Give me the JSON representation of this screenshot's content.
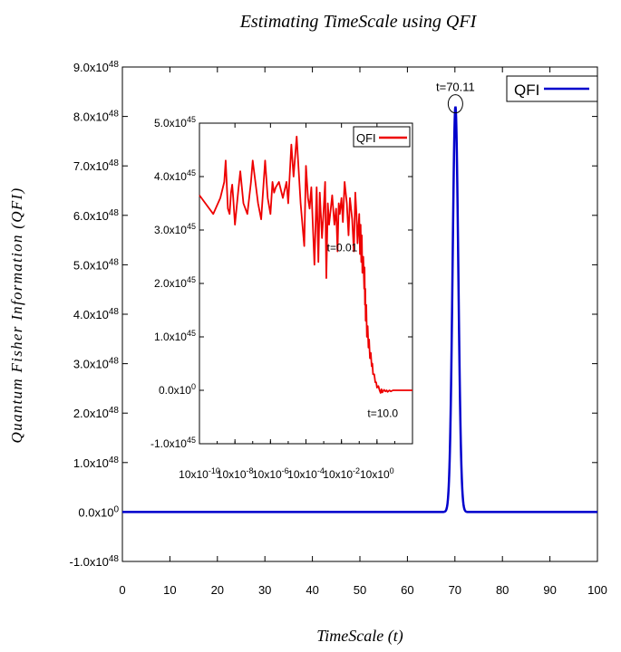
{
  "chart_data": {
    "type": "line",
    "title": "Estimating TimeScale using QFI",
    "xlabel": "TimeScale (t)",
    "ylabel": "Quantum Fisher Information (QFI)",
    "xlim": [
      0,
      100
    ],
    "ylim": [
      -1e+48,
      9e+48
    ],
    "x_ticks": [
      "0",
      "10",
      "20",
      "30",
      "40",
      "50",
      "60",
      "70",
      "80",
      "90",
      "100"
    ],
    "y_ticks": [
      {
        "mant": "-1.0",
        "exp": "48"
      },
      {
        "mant": "0.0",
        "exp": "0"
      },
      {
        "mant": "1.0",
        "exp": "48"
      },
      {
        "mant": "2.0",
        "exp": "48"
      },
      {
        "mant": "3.0",
        "exp": "48"
      },
      {
        "mant": "4.0",
        "exp": "48"
      },
      {
        "mant": "5.0",
        "exp": "48"
      },
      {
        "mant": "6.0",
        "exp": "48"
      },
      {
        "mant": "7.0",
        "exp": "48"
      },
      {
        "mant": "8.0",
        "exp": "48"
      },
      {
        "mant": "9.0",
        "exp": "48"
      }
    ],
    "grid": false,
    "legend_position": "top-right",
    "series": [
      {
        "name": "QFI",
        "color": "#0000cc",
        "peak": {
          "x": 70.11,
          "y": 8.2e+48,
          "width": 0.85
        },
        "baseline": 0.0
      }
    ],
    "annotations": [
      {
        "text": "t=70.11",
        "x": 70.11,
        "y": 8.2e+48,
        "marker": "circle"
      }
    ],
    "inset": {
      "type": "line",
      "xscale": "log",
      "xlim": [
        1e-10,
        100
      ],
      "ylim": [
        -1e+45,
        5e+45
      ],
      "x_ticks": [
        {
          "mant": "10",
          "exp": "-10",
          "value": 1e-10
        },
        {
          "mant": "10",
          "exp": "-8",
          "value": 1e-08
        },
        {
          "mant": "10",
          "exp": "-6",
          "value": 1e-06
        },
        {
          "mant": "10",
          "exp": "-4",
          "value": 0.0001
        },
        {
          "mant": "10",
          "exp": "-2",
          "value": 0.01
        },
        {
          "mant": "10",
          "exp": "0",
          "value": 1
        }
      ],
      "y_ticks": [
        {
          "mant": "-1.0",
          "exp": "45",
          "value": -1e+45
        },
        {
          "mant": "0.0",
          "exp": "0",
          "value": 0
        },
        {
          "mant": "1.0",
          "exp": "45",
          "value": 1e+45
        },
        {
          "mant": "2.0",
          "exp": "45",
          "value": 2e+45
        },
        {
          "mant": "3.0",
          "exp": "45",
          "value": 3e+45
        },
        {
          "mant": "4.0",
          "exp": "45",
          "value": 4e+45
        },
        {
          "mant": "5.0",
          "exp": "45",
          "value": 5e+45
        }
      ],
      "legend_position": "top-right",
      "series": [
        {
          "name": "QFI",
          "color": "#ee0000",
          "x": [
            1e-10,
            6e-10,
            1.5e-09,
            2.5e-09,
            3e-09,
            4e-09,
            5e-09,
            6e-09,
            7e-09,
            8e-09,
            1e-08,
            1.5e-08,
            2e-08,
            3e-08,
            5e-08,
            8e-08,
            1e-07,
            2e-07,
            3e-07,
            5e-07,
            7e-07,
            1e-06,
            1.3e-06,
            1.6e-06,
            2e-06,
            3e-06,
            5e-06,
            8e-06,
            1e-05,
            1.5e-05,
            2e-05,
            3e-05,
            5e-05,
            8e-05,
            0.0001,
            0.00013,
            0.00016,
            0.0002,
            0.0003,
            0.0004,
            0.0005,
            0.0006,
            0.0008,
            0.001,
            0.0012,
            0.0014,
            0.0017,
            0.002,
            0.0025,
            0.003,
            0.0035,
            0.004,
            0.005,
            0.006,
            0.007,
            0.008,
            0.01,
            0.012,
            0.015,
            0.02,
            0.025,
            0.03,
            0.04,
            0.05,
            0.06,
            0.07,
            0.08,
            0.1,
            0.11,
            0.12,
            0.13,
            0.14,
            0.15,
            0.17,
            0.19,
            0.2,
            0.21,
            0.22,
            0.23,
            0.25,
            0.27,
            0.3,
            0.33,
            0.36,
            0.4,
            0.45,
            0.5,
            0.55,
            0.6,
            0.7,
            0.8,
            0.9,
            1.0,
            1.2,
            1.4,
            1.6,
            1.8,
            2.0,
            2.5,
            3.0,
            3.5,
            4.0,
            5.0,
            6.0,
            8.0,
            10.0,
            20.0,
            40.0,
            100.0
          ],
          "y": [
            3.65e+45,
            3.3e+45,
            3.6e+45,
            3.9e+45,
            4.3e+45,
            3.4e+45,
            3.3e+45,
            3.7e+45,
            3.85e+45,
            3.6e+45,
            3.1e+45,
            3.7e+45,
            4.1e+45,
            3.5e+45,
            3.3e+45,
            3.9e+45,
            4.3e+45,
            3.5e+45,
            3.2e+45,
            4.3e+45,
            3.6e+45,
            3.3e+45,
            3.9e+45,
            3.7e+45,
            3.8e+45,
            3.9e+45,
            3.6e+45,
            3.9e+45,
            3.5e+45,
            4.6e+45,
            4e+45,
            4.75e+45,
            3.5e+45,
            2.7e+45,
            4.2e+45,
            3.6e+45,
            3.4e+45,
            3.8e+45,
            2.35e+45,
            3.8e+45,
            2.4e+45,
            3.7e+45,
            2.85e+45,
            3.4e+45,
            3.9e+45,
            2.1e+45,
            3.5e+45,
            3.1e+45,
            3.4e+45,
            3.65e+45,
            3.35e+45,
            3.1e+45,
            3.4e+45,
            2.6e+45,
            3.5e+45,
            3.3e+45,
            3.6e+45,
            3.15e+45,
            3.9e+45,
            3.5e+45,
            2.9e+45,
            3.6e+45,
            3.2e+45,
            2.6e+45,
            3.7e+45,
            3.3e+45,
            2.75e+45,
            3.3e+45,
            2.55e+45,
            3.1e+45,
            2.4e+45,
            2.9e+45,
            2.2e+45,
            2.5e+45,
            1.9e+45,
            2.3e+45,
            1.6e+45,
            1.9e+45,
            1.3e+45,
            1.6e+45,
            1e+45,
            1.2e+45,
            8e+44,
            9.5e+44,
            6e+44,
            7e+44,
            4.5e+44,
            5e+44,
            3e+44,
            3e+44,
            1.5e+44,
            1.5e+44,
            5e+43,
            8e+43,
            0.0,
            -5e+43,
            2e+43,
            -4e+43,
            1e+43,
            -2e+43,
            0.0,
            -3e+43,
            0.0,
            -2e+43,
            0.0,
            0.0,
            0.0,
            0.0,
            0.0
          ]
        }
      ],
      "annotations": [
        {
          "text": "t=0.01",
          "x": 0.01
        },
        {
          "text": "t=10.0",
          "x": 10.0
        }
      ]
    }
  }
}
